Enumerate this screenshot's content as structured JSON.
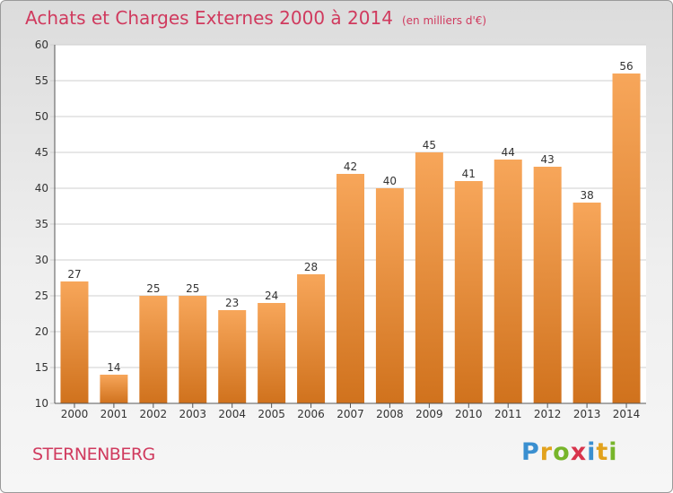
{
  "title": "Achats et Charges Externes 2000 à 2014",
  "unit": "(en milliers d'€)",
  "commune": "STERNENBERG",
  "logo": {
    "letters": [
      "P",
      "r",
      "o",
      "x",
      "i",
      "t",
      "i"
    ],
    "colors": [
      "#3a8fd0",
      "#e2a21d",
      "#77b52a",
      "#d8344c",
      "#3a8fd0",
      "#e2a21d",
      "#77b52a"
    ]
  },
  "colors": {
    "title": "#d03a5e",
    "bar_top": "#f7a65a",
    "bar_bottom": "#d0721d"
  },
  "chart_data": {
    "type": "bar",
    "categories": [
      "2000",
      "2001",
      "2002",
      "2003",
      "2004",
      "2005",
      "2006",
      "2007",
      "2008",
      "2009",
      "2010",
      "2011",
      "2012",
      "2013",
      "2014"
    ],
    "values": [
      27,
      14,
      25,
      25,
      23,
      24,
      28,
      42,
      40,
      45,
      41,
      44,
      43,
      38,
      56
    ],
    "yticks": [
      10,
      15,
      20,
      25,
      30,
      35,
      40,
      45,
      50,
      55,
      60
    ],
    "ylim": [
      10,
      60
    ],
    "grid": true
  }
}
